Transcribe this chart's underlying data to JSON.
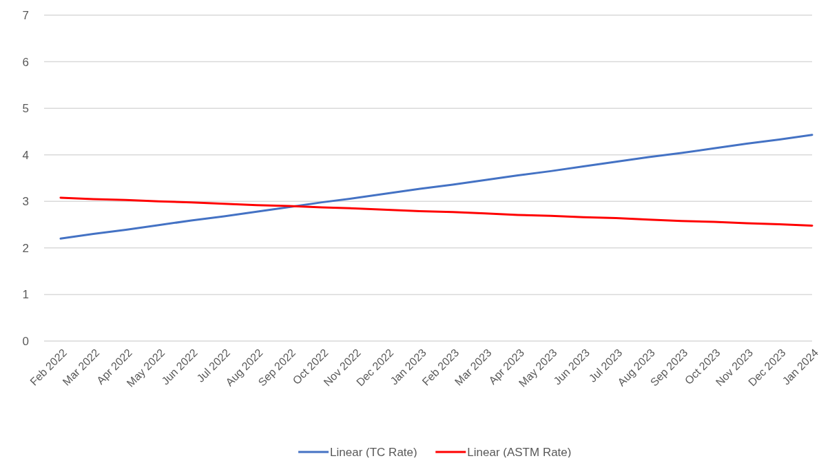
{
  "chart_data": {
    "type": "line",
    "categories": [
      "Feb 2022",
      "Mar 2022",
      "Apr 2022",
      "May 2022",
      "Jun 2022",
      "Jul 2022",
      "Aug 2022",
      "Sep 2022",
      "Oct 2022",
      "Nov 2022",
      "Dec 2022",
      "Jan 2023",
      "Feb 2023",
      "Mar 2023",
      "Apr 2023",
      "May 2023",
      "Jun 2023",
      "Jul 2023",
      "Aug 2023",
      "Sep 2023",
      "Oct 2023",
      "Nov 2023",
      "Dec 2023",
      "Jan 2024"
    ],
    "series": [
      {
        "name": "Linear (TC Rate)",
        "color": "#4472c4",
        "values": [
          2.2,
          2.3,
          2.39,
          2.49,
          2.59,
          2.68,
          2.78,
          2.88,
          2.98,
          3.07,
          3.17,
          3.27,
          3.36,
          3.46,
          3.56,
          3.65,
          3.75,
          3.85,
          3.95,
          4.04,
          4.14,
          4.24,
          4.33,
          4.43
        ]
      },
      {
        "name": "Linear (ASTM Rate)",
        "color": "#ff0000",
        "values": [
          3.08,
          3.05,
          3.03,
          3.0,
          2.98,
          2.95,
          2.92,
          2.9,
          2.87,
          2.85,
          2.82,
          2.79,
          2.77,
          2.74,
          2.71,
          2.69,
          2.66,
          2.64,
          2.61,
          2.58,
          2.56,
          2.53,
          2.51,
          2.48
        ]
      }
    ],
    "ylim": [
      0,
      7
    ],
    "yticks": [
      0,
      1,
      2,
      3,
      4,
      5,
      6,
      7
    ],
    "grid": "y",
    "legend": "bottom",
    "marker": "none",
    "line_style": "solid"
  }
}
